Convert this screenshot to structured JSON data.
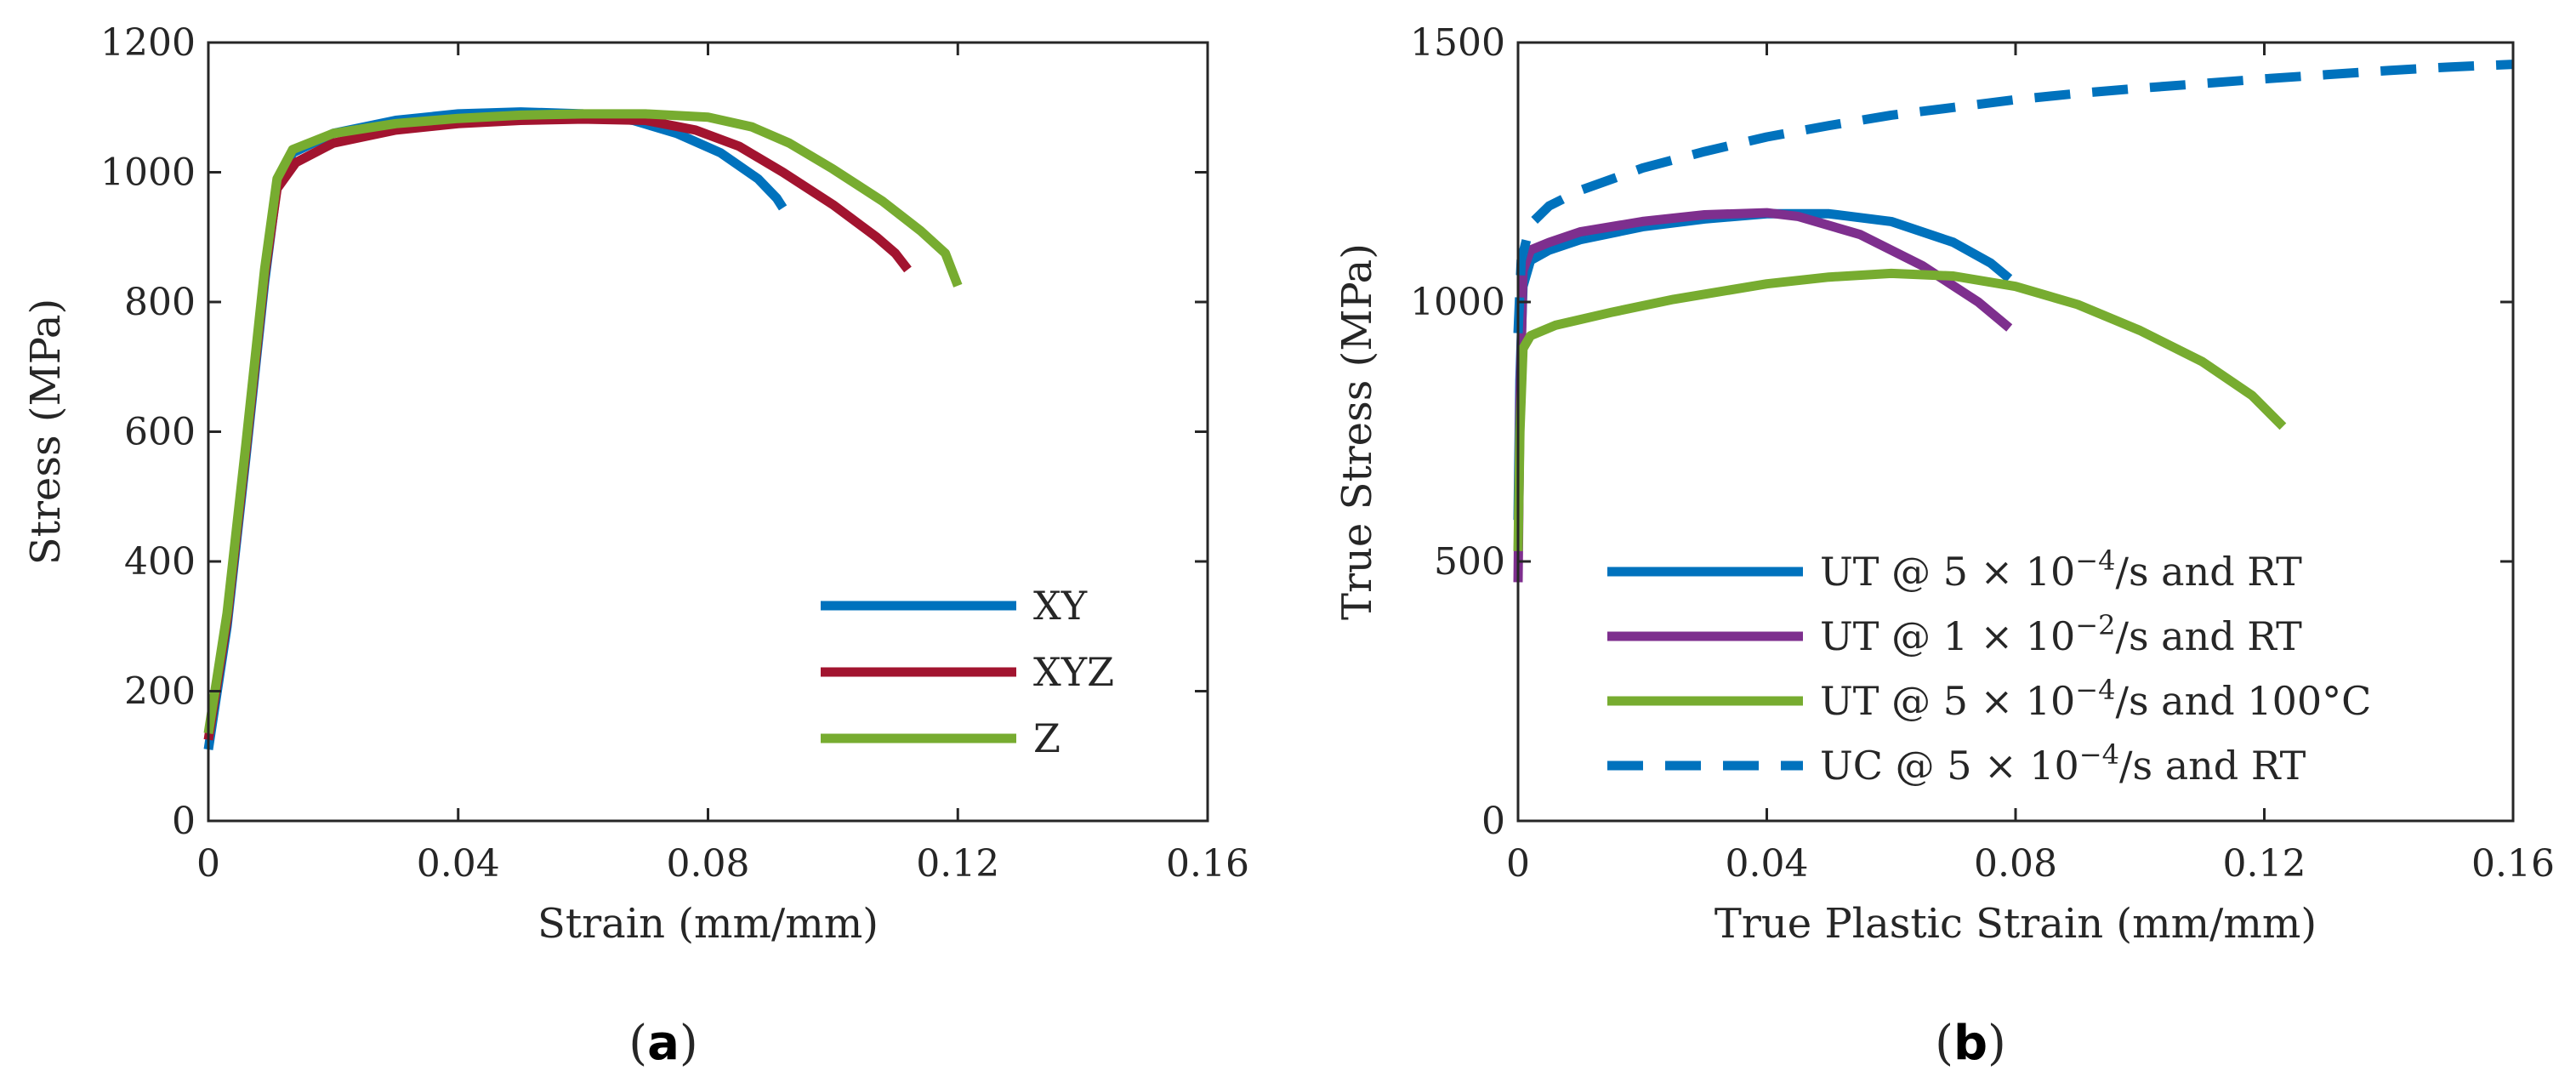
{
  "chart_data": [
    {
      "type": "line",
      "caption": "(a)",
      "xlabel": "Strain (mm/mm)",
      "ylabel": "Stress (MPa)",
      "xlim": [
        0,
        0.16
      ],
      "ylim": [
        0,
        1200
      ],
      "xticks": [
        {
          "value": 0,
          "label": "0"
        },
        {
          "value": 0.04,
          "label": "0.04"
        },
        {
          "value": 0.08,
          "label": "0.08"
        },
        {
          "value": 0.12,
          "label": "0.12"
        },
        {
          "value": 0.16,
          "label": "0.16"
        }
      ],
      "yticks": [
        {
          "value": 0,
          "label": "0"
        },
        {
          "value": 200,
          "label": "200"
        },
        {
          "value": 400,
          "label": "400"
        },
        {
          "value": 600,
          "label": "600"
        },
        {
          "value": 800,
          "label": "800"
        },
        {
          "value": 1000,
          "label": "1000"
        },
        {
          "value": 1200,
          "label": "1200"
        }
      ],
      "legend_position": "bottom-right",
      "series": [
        {
          "name": "XY",
          "color": "#0072bd",
          "dashed": false,
          "points": [
            [
              0.0,
              110
            ],
            [
              0.003,
              300
            ],
            [
              0.006,
              560
            ],
            [
              0.009,
              830
            ],
            [
              0.011,
              980
            ],
            [
              0.0135,
              1030
            ],
            [
              0.02,
              1060
            ],
            [
              0.03,
              1080
            ],
            [
              0.04,
              1090
            ],
            [
              0.05,
              1093
            ],
            [
              0.06,
              1090
            ],
            [
              0.068,
              1080
            ],
            [
              0.075,
              1060
            ],
            [
              0.082,
              1030
            ],
            [
              0.088,
              990
            ],
            [
              0.091,
              960
            ],
            [
              0.092,
              945
            ]
          ]
        },
        {
          "name": "XYZ",
          "color": "#a2142f",
          "dashed": false,
          "points": [
            [
              0.0,
              125
            ],
            [
              0.003,
              310
            ],
            [
              0.006,
              570
            ],
            [
              0.009,
              840
            ],
            [
              0.011,
              975
            ],
            [
              0.014,
              1015
            ],
            [
              0.02,
              1045
            ],
            [
              0.03,
              1065
            ],
            [
              0.04,
              1075
            ],
            [
              0.05,
              1080
            ],
            [
              0.06,
              1082
            ],
            [
              0.07,
              1080
            ],
            [
              0.078,
              1065
            ],
            [
              0.085,
              1040
            ],
            [
              0.092,
              1000
            ],
            [
              0.1,
              950
            ],
            [
              0.107,
              900
            ],
            [
              0.11,
              875
            ],
            [
              0.112,
              850
            ]
          ]
        },
        {
          "name": "Z",
          "color": "#77ac30",
          "dashed": false,
          "points": [
            [
              0.0,
              135
            ],
            [
              0.003,
              320
            ],
            [
              0.006,
              580
            ],
            [
              0.009,
              850
            ],
            [
              0.011,
              990
            ],
            [
              0.0135,
              1035
            ],
            [
              0.02,
              1060
            ],
            [
              0.03,
              1075
            ],
            [
              0.04,
              1083
            ],
            [
              0.05,
              1088
            ],
            [
              0.06,
              1090
            ],
            [
              0.07,
              1090
            ],
            [
              0.08,
              1085
            ],
            [
              0.087,
              1070
            ],
            [
              0.093,
              1045
            ],
            [
              0.1,
              1005
            ],
            [
              0.108,
              955
            ],
            [
              0.114,
              910
            ],
            [
              0.118,
              875
            ],
            [
              0.12,
              825
            ]
          ]
        }
      ]
    },
    {
      "type": "line",
      "caption": "(b)",
      "xlabel": "True Plastic Strain (mm/mm)",
      "ylabel": "True Stress (MPa)",
      "xlim": [
        0,
        0.16
      ],
      "ylim": [
        0,
        1500
      ],
      "xticks": [
        {
          "value": 0,
          "label": "0"
        },
        {
          "value": 0.04,
          "label": "0.04"
        },
        {
          "value": 0.08,
          "label": "0.08"
        },
        {
          "value": 0.12,
          "label": "0.12"
        },
        {
          "value": 0.16,
          "label": "0.16"
        }
      ],
      "yticks": [
        {
          "value": 0,
          "label": "0"
        },
        {
          "value": 500,
          "label": "500"
        },
        {
          "value": 1000,
          "label": "1000"
        },
        {
          "value": 1500,
          "label": "1500"
        }
      ],
      "legend_position": "bottom-right",
      "series": [
        {
          "name": "UT @ 5 × 10⁻⁴/s and RT",
          "color": "#0072bd",
          "dashed": false,
          "points": [
            [
              0.0,
              580
            ],
            [
              0.0003,
              850
            ],
            [
              0.0008,
              1030
            ],
            [
              0.002,
              1080
            ],
            [
              0.005,
              1100
            ],
            [
              0.01,
              1120
            ],
            [
              0.02,
              1145
            ],
            [
              0.03,
              1160
            ],
            [
              0.04,
              1170
            ],
            [
              0.05,
              1170
            ],
            [
              0.06,
              1155
            ],
            [
              0.07,
              1115
            ],
            [
              0.076,
              1075
            ],
            [
              0.079,
              1045
            ]
          ]
        },
        {
          "name": "UT @ 1 × 10⁻²/s and RT",
          "color": "#7e2f8e",
          "dashed": false,
          "points": [
            [
              0.0,
              460
            ],
            [
              0.0003,
              800
            ],
            [
              0.0008,
              1060
            ],
            [
              0.002,
              1100
            ],
            [
              0.005,
              1115
            ],
            [
              0.01,
              1135
            ],
            [
              0.02,
              1155
            ],
            [
              0.03,
              1168
            ],
            [
              0.04,
              1172
            ],
            [
              0.045,
              1165
            ],
            [
              0.055,
              1130
            ],
            [
              0.065,
              1070
            ],
            [
              0.074,
              1000
            ],
            [
              0.079,
              950
            ]
          ]
        },
        {
          "name": "UT @ 5 × 10⁻⁴/s and 100°C",
          "color": "#77ac30",
          "dashed": false,
          "points": [
            [
              0.0,
              520
            ],
            [
              0.0003,
              750
            ],
            [
              0.0008,
              910
            ],
            [
              0.002,
              935
            ],
            [
              0.006,
              955
            ],
            [
              0.015,
              980
            ],
            [
              0.025,
              1005
            ],
            [
              0.04,
              1035
            ],
            [
              0.05,
              1048
            ],
            [
              0.06,
              1055
            ],
            [
              0.07,
              1050
            ],
            [
              0.08,
              1030
            ],
            [
              0.09,
              995
            ],
            [
              0.1,
              945
            ],
            [
              0.11,
              885
            ],
            [
              0.118,
              820
            ],
            [
              0.123,
              760
            ]
          ]
        },
        {
          "name": "UC @ 5 × 10⁻⁴/s and RT",
          "color": "#0072bd",
          "dashed": true,
          "points": [
            [
              0.0,
              940
            ],
            [
              0.0005,
              1080
            ],
            [
              0.002,
              1150
            ],
            [
              0.005,
              1185
            ],
            [
              0.01,
              1215
            ],
            [
              0.02,
              1258
            ],
            [
              0.03,
              1290
            ],
            [
              0.04,
              1318
            ],
            [
              0.05,
              1340
            ],
            [
              0.06,
              1360
            ],
            [
              0.07,
              1375
            ],
            [
              0.08,
              1390
            ],
            [
              0.09,
              1402
            ],
            [
              0.1,
              1412
            ],
            [
              0.11,
              1421
            ],
            [
              0.12,
              1430
            ],
            [
              0.13,
              1438
            ],
            [
              0.14,
              1446
            ],
            [
              0.15,
              1453
            ],
            [
              0.16,
              1458
            ]
          ]
        }
      ]
    }
  ]
}
